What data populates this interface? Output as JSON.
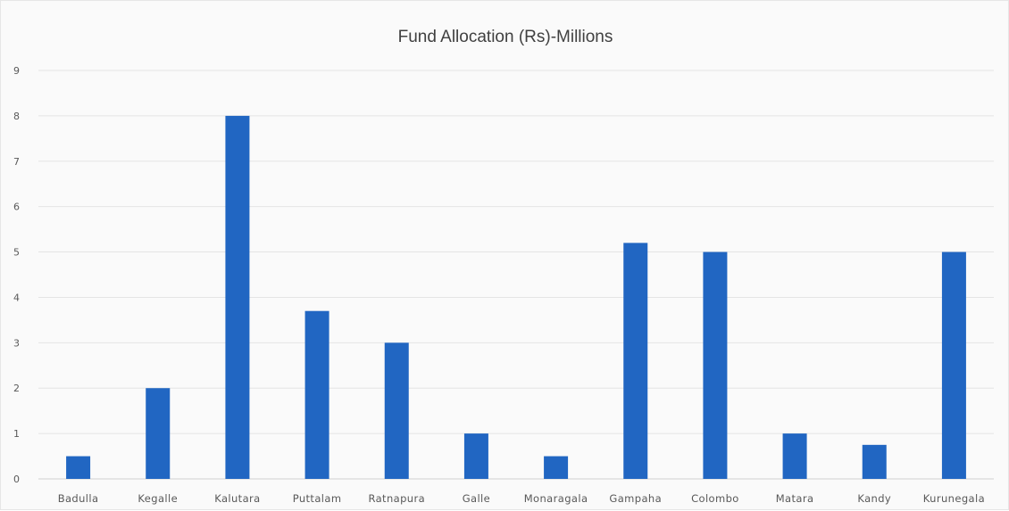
{
  "chart_data": {
    "type": "bar",
    "title": "Fund Allocation (Rs)-Millions",
    "xlabel": "",
    "ylabel": "",
    "categories": [
      "Badulla",
      "Kegalle",
      "Kalutara",
      "Puttalam",
      "Ratnapura",
      "Galle",
      "Monaragala",
      "Gampaha",
      "Colombo",
      "Matara",
      "Kandy",
      "Kurunegala"
    ],
    "values": [
      0.5,
      2,
      8,
      3.7,
      3,
      1,
      0.5,
      5.2,
      5,
      1,
      0.75,
      5
    ],
    "ylim": [
      0,
      9
    ],
    "yticks": [
      0,
      1,
      2,
      3,
      4,
      5,
      6,
      7,
      8,
      9
    ],
    "grid": true,
    "legend": "none",
    "bar_color": "#2166c2"
  }
}
